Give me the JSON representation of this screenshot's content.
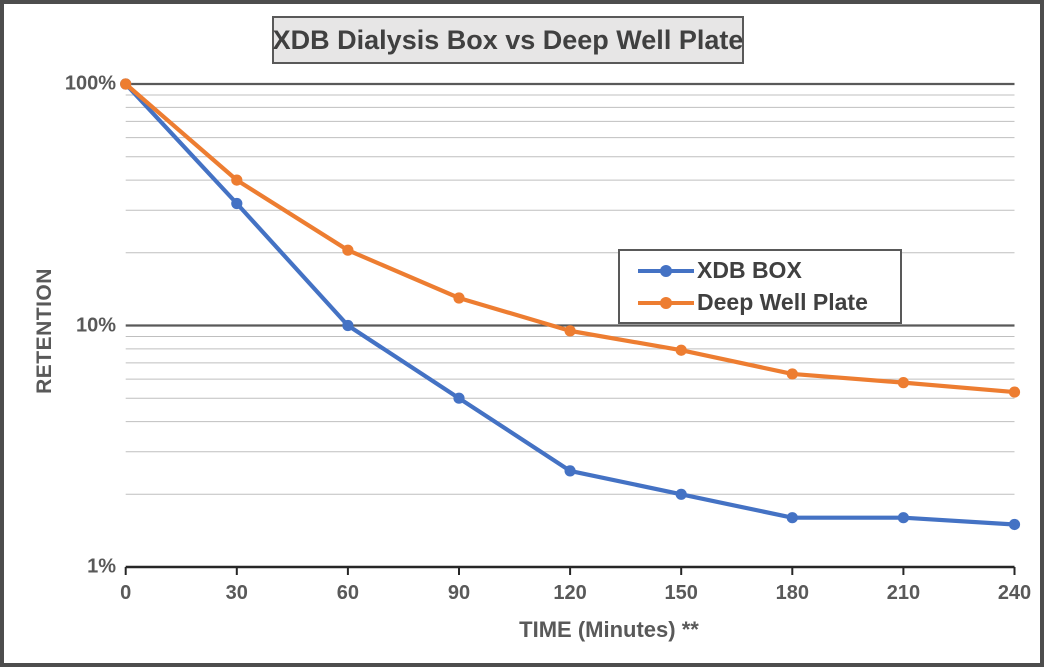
{
  "window": {
    "background": "#ffffff",
    "border_color": "#4d4d4d"
  },
  "title_box": {
    "fill": "#e7e6e6",
    "border_color": "#595959",
    "text_color": "#404040"
  },
  "legend": {
    "border_color": "#595959",
    "background": "#ffffff",
    "entries": [
      {
        "label": "XDB BOX",
        "color": "#4472c4"
      },
      {
        "label": "Deep Well Plate",
        "color": "#ed7d31"
      }
    ]
  },
  "chart_data": {
    "type": "line",
    "title": "XDB Dialysis Box vs Deep Well Plate",
    "xlabel": "TIME (Minutes) **",
    "ylabel": "RETENTION",
    "y_scale": "log",
    "ylim": [
      1,
      100
    ],
    "xlim": [
      0,
      240
    ],
    "x": [
      0,
      30,
      60,
      90,
      120,
      150,
      180,
      210,
      240
    ],
    "x_ticks": [
      0,
      30,
      60,
      90,
      120,
      150,
      180,
      210,
      240
    ],
    "y_ticks": [
      100,
      10,
      1
    ],
    "y_tick_labels": [
      "100%",
      "10%",
      "1%"
    ],
    "minor_gridlines_percent": [
      90,
      80,
      70,
      60,
      50,
      40,
      30,
      20,
      9,
      8,
      7,
      6,
      5,
      4,
      3,
      2
    ],
    "major_gridlines_percent": [
      100,
      10
    ],
    "series": [
      {
        "name": "XDB BOX",
        "color": "#4472c4",
        "values": [
          100,
          32,
          10,
          5,
          2.5,
          2.0,
          1.6,
          1.6,
          1.5
        ]
      },
      {
        "name": "Deep Well Plate",
        "color": "#ed7d31",
        "values": [
          100,
          40,
          20.5,
          13,
          9.5,
          7.9,
          6.3,
          5.8,
          5.3
        ]
      }
    ],
    "grid": {
      "minor_color": "#bfbfbf",
      "major_color": "#595959",
      "axis_color": "#262626"
    },
    "legend_position": "middle-right",
    "marker": "circle"
  }
}
